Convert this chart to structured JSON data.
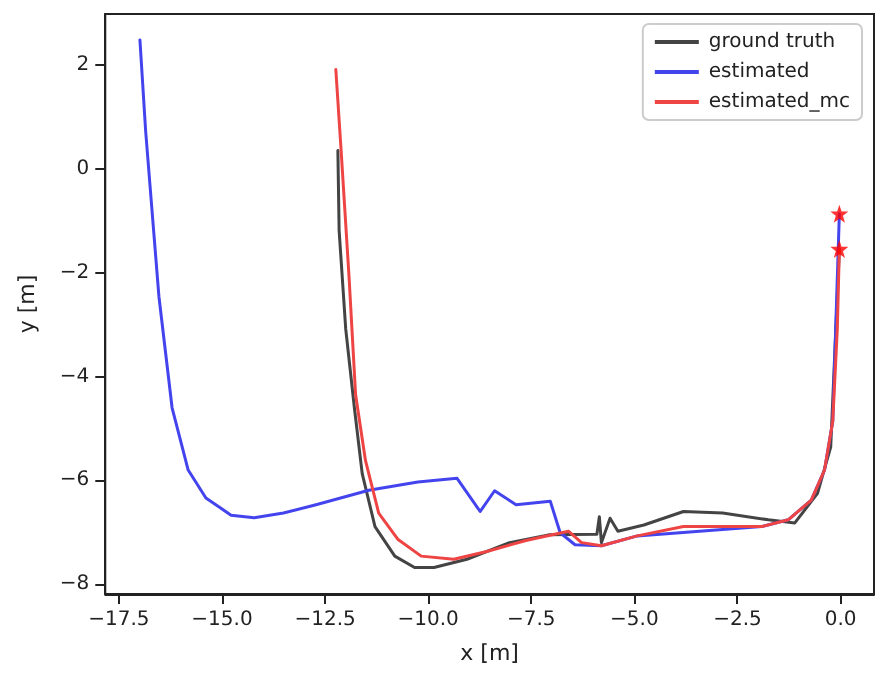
{
  "chart_data": {
    "type": "line",
    "xlabel": "x [m]",
    "ylabel": "y [m]",
    "xlim": [
      -17.83,
      0.81
    ],
    "ylim": [
      -8.19,
      2.99
    ],
    "xticks": [
      {
        "value": -17.5,
        "label": "−17.5"
      },
      {
        "value": -15,
        "label": "−15.0"
      },
      {
        "value": -12.5,
        "label": "−12.5"
      },
      {
        "value": -10,
        "label": "−10.0"
      },
      {
        "value": -7.5,
        "label": "−7.5"
      },
      {
        "value": -5,
        "label": "−5.0"
      },
      {
        "value": -2.5,
        "label": "−2.5"
      },
      {
        "value": 0,
        "label": "0.0"
      }
    ],
    "yticks": [
      {
        "value": -8,
        "label": "−8"
      },
      {
        "value": -6,
        "label": "−6"
      },
      {
        "value": -4,
        "label": "−4"
      },
      {
        "value": -2,
        "label": "−2"
      },
      {
        "value": 0,
        "label": "0"
      },
      {
        "value": 2,
        "label": "2"
      }
    ],
    "grid": false,
    "legend": "top right",
    "marker": "none",
    "line_style": "solid",
    "series": [
      {
        "name": "ground truth",
        "color": "#444444",
        "x": [
          -12.19,
          -12.16,
          -12.0,
          -11.79,
          -11.6,
          -11.29,
          -10.81,
          -10.33,
          -9.86,
          -9.06,
          -8.03,
          -7.08,
          -5.91,
          -5.85,
          -5.8,
          -5.59,
          -5.4,
          -4.77,
          -3.81,
          -2.86,
          -1.75,
          -1.11,
          -0.56,
          -0.24,
          -0.03
        ],
        "values": [
          0.36,
          -1.18,
          -3.08,
          -4.6,
          -5.87,
          -6.89,
          -7.46,
          -7.68,
          -7.68,
          -7.52,
          -7.2,
          -7.05,
          -7.04,
          -6.7,
          -7.2,
          -6.73,
          -6.98,
          -6.86,
          -6.6,
          -6.63,
          -6.76,
          -6.82,
          -6.25,
          -5.36,
          -1.54
        ]
      },
      {
        "name": "estimated",
        "color": "#4444ee",
        "x": [
          -16.99,
          -16.85,
          -16.53,
          -16.21,
          -15.82,
          -15.39,
          -14.78,
          -14.22,
          -13.51,
          -12.72,
          -11.44,
          -10.25,
          -9.3,
          -8.74,
          -8.39,
          -7.87,
          -7.04,
          -6.8,
          -6.44,
          -5.8,
          -4.93,
          -1.91,
          -1.27,
          -0.71,
          -0.39,
          -0.19,
          -0.03
        ],
        "values": [
          2.49,
          0.72,
          -2.45,
          -4.6,
          -5.8,
          -6.34,
          -6.67,
          -6.72,
          -6.63,
          -6.47,
          -6.19,
          -6.03,
          -5.96,
          -6.6,
          -6.2,
          -6.47,
          -6.4,
          -7.01,
          -7.24,
          -7.26,
          -7.07,
          -6.89,
          -6.76,
          -6.38,
          -5.8,
          -4.86,
          -0.86
        ]
      },
      {
        "name": "estimated_mc",
        "color": "#ee4444",
        "x": [
          -12.24,
          -12.11,
          -11.92,
          -11.76,
          -11.52,
          -11.2,
          -10.73,
          -10.17,
          -9.38,
          -8.58,
          -7.63,
          -6.6,
          -6.28,
          -5.8,
          -4.93,
          -3.81,
          -1.91,
          -1.27,
          -0.71,
          -0.39,
          -0.19,
          -0.08,
          -0.03
        ],
        "values": [
          1.92,
          0.34,
          -2.07,
          -4.35,
          -5.62,
          -6.63,
          -7.14,
          -7.46,
          -7.52,
          -7.37,
          -7.16,
          -6.98,
          -7.2,
          -7.26,
          -7.07,
          -6.89,
          -6.89,
          -6.76,
          -6.38,
          -5.8,
          -4.86,
          -3.08,
          -1.54
        ]
      },
      {
        "type": "scatter",
        "marker": "star",
        "color": "#ff0000",
        "x": [
          -0.03,
          -0.03
        ],
        "values": [
          -0.86,
          -1.54
        ]
      }
    ]
  }
}
